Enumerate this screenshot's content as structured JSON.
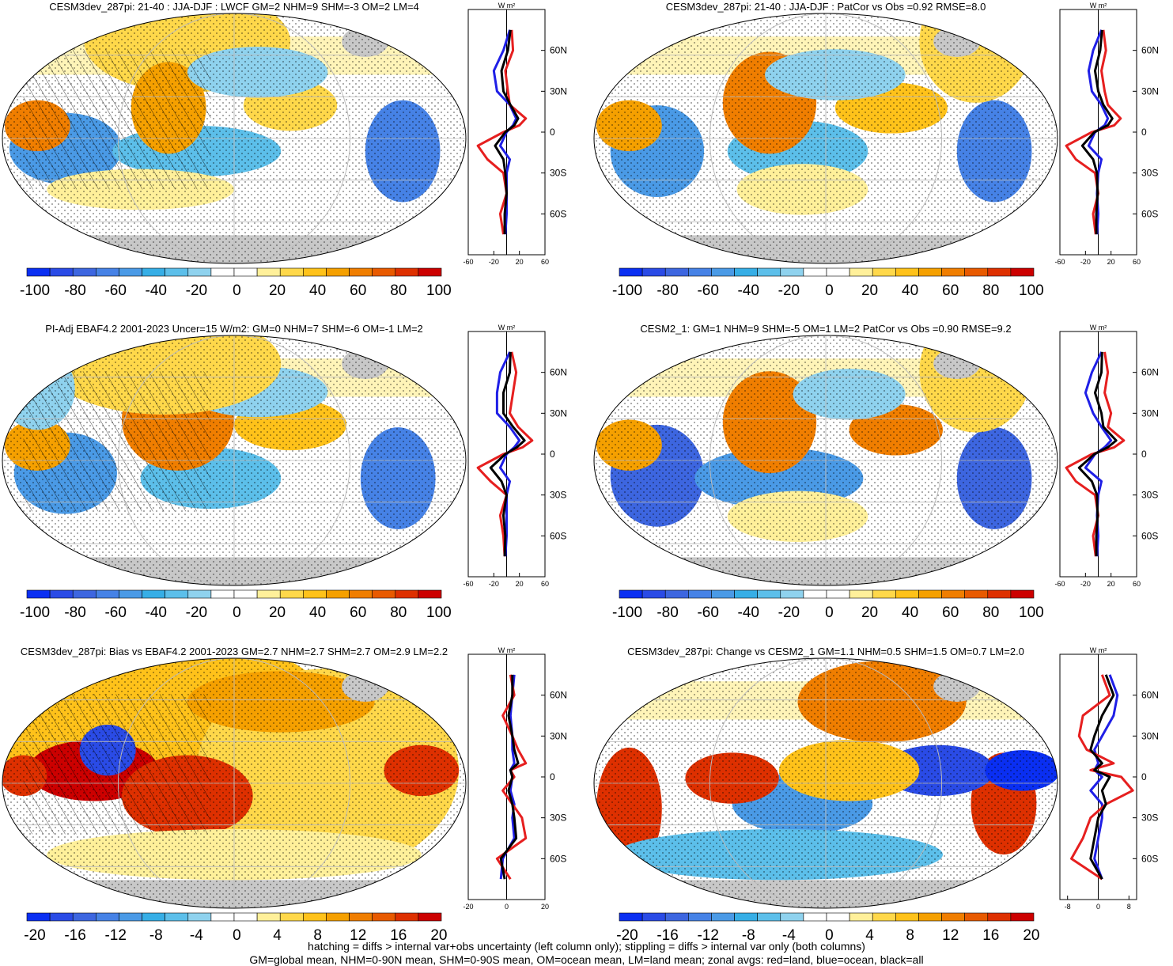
{
  "colormap": {
    "main": [
      "#0a2ff2",
      "#2a4be6",
      "#3d66e0",
      "#4682e6",
      "#4a9ae6",
      "#36aee6",
      "#5cbfea",
      "#8fd2ee",
      "#ffffff",
      "#ffffff",
      "#fff09a",
      "#ffd84a",
      "#ffc21a",
      "#f5a000",
      "#f07e00",
      "#e85a00",
      "#de3000",
      "#cc0000"
    ],
    "bias": [
      "#0a2ff2",
      "#2a4be6",
      "#3d66e0",
      "#4682e6",
      "#4a9ae6",
      "#36aee6",
      "#5cbfea",
      "#8fd2ee",
      "#ffffff",
      "#ffffff",
      "#fff09a",
      "#ffd84a",
      "#ffc21a",
      "#f5a000",
      "#f07e00",
      "#e85a00",
      "#de3000",
      "#cc0000"
    ]
  },
  "chart_data": [
    {
      "type": "heatmap",
      "title": "CESM3dev_287pi: 21-40 : JJA-DJF : LWCF GM=2 NHM=9 SHM=-3 OM=2 LM=4",
      "colorbar_ticks": [
        "-100",
        "-80",
        "-60",
        "-40",
        "-20",
        "0",
        "20",
        "40",
        "60",
        "80",
        "100"
      ],
      "zonal": {
        "unit": "W m²",
        "xlim": [
          -60,
          60
        ],
        "x_ticks": [
          "-60",
          "-20",
          "20",
          "60"
        ],
        "lat_labels": [
          "60N",
          "30N",
          "0",
          "30S",
          "60S"
        ],
        "lat": [
          75,
          60,
          45,
          30,
          20,
          10,
          5,
          0,
          -10,
          -20,
          -30,
          -45,
          -60,
          -75
        ],
        "land": [
          8,
          10,
          -2,
          2,
          5,
          30,
          20,
          -5,
          -45,
          -30,
          -5,
          0,
          -10,
          -5
        ],
        "ocean": [
          5,
          -5,
          -20,
          -15,
          5,
          15,
          10,
          0,
          -10,
          5,
          0,
          0,
          0,
          -2
        ],
        "all": [
          6,
          2,
          -8,
          -5,
          6,
          18,
          12,
          -2,
          -18,
          -5,
          -2,
          0,
          -3,
          -3
        ]
      }
    },
    {
      "type": "heatmap",
      "title": "CESM3dev_287pi: 21-40 : JJA-DJF : PatCor vs Obs =0.92 RMSE=8.0",
      "colorbar_ticks": [
        "-100",
        "-80",
        "-60",
        "-40",
        "-20",
        "0",
        "20",
        "40",
        "60",
        "80",
        "100"
      ],
      "zonal": {
        "unit": "W m²",
        "xlim": [
          -60,
          60
        ],
        "x_ticks": [
          "-60",
          "-20",
          "20",
          "60"
        ],
        "lat_labels": [
          "60N",
          "30N",
          "0",
          "30S",
          "60S"
        ],
        "lat": [
          75,
          60,
          45,
          30,
          20,
          10,
          5,
          0,
          -10,
          -20,
          -30,
          -45,
          -60,
          -75
        ],
        "land": [
          8,
          12,
          5,
          10,
          15,
          35,
          25,
          -10,
          -50,
          -35,
          -5,
          0,
          -8,
          -4
        ],
        "ocean": [
          5,
          -8,
          -15,
          -10,
          5,
          15,
          10,
          -5,
          -15,
          5,
          0,
          -2,
          0,
          -2
        ],
        "all": [
          6,
          3,
          -5,
          0,
          8,
          22,
          15,
          -6,
          -25,
          -8,
          -2,
          -1,
          -3,
          -3
        ]
      }
    },
    {
      "type": "heatmap",
      "title": "PI-Adj EBAF4.2 2001-2023 Uncer=15 W/m2: GM=0 NHM=7 SHM=-6 OM=-1 LM=2",
      "colorbar_ticks": [
        "-100",
        "-80",
        "-60",
        "-40",
        "-20",
        "0",
        "20",
        "40",
        "60",
        "80",
        "100"
      ],
      "zonal": {
        "unit": "W m²",
        "xlim": [
          -60,
          60
        ],
        "x_ticks": [
          "-60",
          "-20",
          "20",
          "60"
        ],
        "lat_labels": [
          "60N",
          "30N",
          "0",
          "30S",
          "60S"
        ],
        "lat": [
          75,
          60,
          45,
          30,
          20,
          10,
          5,
          0,
          -10,
          -20,
          -30,
          -45,
          -60,
          -75
        ],
        "land": [
          8,
          15,
          10,
          5,
          18,
          40,
          25,
          -5,
          -45,
          -25,
          0,
          -10,
          -5,
          -3
        ],
        "ocean": [
          5,
          -10,
          -15,
          -15,
          5,
          20,
          12,
          0,
          -10,
          5,
          0,
          0,
          0,
          -2
        ],
        "all": [
          6,
          5,
          -5,
          -5,
          10,
          28,
          16,
          -2,
          -25,
          -8,
          0,
          -5,
          -2,
          -3
        ]
      }
    },
    {
      "type": "heatmap",
      "title": "CESM2_1: GM=1 NHM=9 SHM=-5 OM=1 LM=2 PatCor vs Obs =0.90 RMSE=9.2",
      "colorbar_ticks": [
        "-100",
        "-80",
        "-60",
        "-40",
        "-20",
        "0",
        "20",
        "40",
        "60",
        "80",
        "100"
      ],
      "zonal": {
        "unit": "W m²",
        "xlim": [
          -60,
          60
        ],
        "x_ticks": [
          "-60",
          "-20",
          "20",
          "60"
        ],
        "lat_labels": [
          "60N",
          "30N",
          "0",
          "30S",
          "60S"
        ],
        "lat": [
          75,
          60,
          45,
          30,
          20,
          10,
          5,
          0,
          -10,
          -20,
          -30,
          -45,
          -60,
          -75
        ],
        "land": [
          10,
          15,
          10,
          20,
          15,
          40,
          25,
          -10,
          -50,
          -35,
          -5,
          0,
          -8,
          -4
        ],
        "ocean": [
          5,
          -10,
          -20,
          -8,
          5,
          20,
          10,
          -5,
          -20,
          5,
          0,
          -2,
          0,
          -2
        ],
        "all": [
          6,
          5,
          -5,
          5,
          8,
          28,
          15,
          -6,
          -30,
          -10,
          -2,
          -1,
          -3,
          -3
        ]
      }
    },
    {
      "type": "heatmap",
      "title": "CESM3dev_287pi: Bias vs EBAF4.2 2001-2023 GM=2.7 NHM=2.7 SHM=2.7 OM=2.9 LM=2.2",
      "colorbar_ticks": [
        "-20",
        "-16",
        "-12",
        "-8",
        "-4",
        "0",
        "4",
        "8",
        "12",
        "16",
        "20"
      ],
      "zonal": {
        "unit": "W m²",
        "xlim": [
          -20,
          20
        ],
        "x_ticks": [
          "-20",
          "0",
          "20"
        ],
        "lat_labels": [
          "60N",
          "30N",
          "0",
          "30S",
          "60S"
        ],
        "lat": [
          75,
          60,
          45,
          30,
          20,
          10,
          5,
          0,
          -10,
          -20,
          -30,
          -45,
          -60,
          -75
        ],
        "land": [
          2,
          4,
          -2,
          3,
          6,
          10,
          2,
          4,
          -2,
          3,
          8,
          10,
          -5,
          2
        ],
        "ocean": [
          4,
          3,
          2,
          3,
          3,
          4,
          2,
          3,
          2,
          4,
          3,
          4,
          -2,
          -3
        ],
        "all": [
          3,
          3,
          1,
          3,
          4,
          6,
          2,
          3,
          1,
          3,
          4,
          5,
          -3,
          -1
        ]
      }
    },
    {
      "type": "heatmap",
      "title": "CESM3dev_287pi: Change vs CESM2_1 GM=1.1 NHM=0.5 SHM=1.5 OM=0.7 LM=2.0",
      "colorbar_ticks": [
        "-20",
        "-16",
        "-12",
        "-8",
        "-4",
        "0",
        "4",
        "8",
        "12",
        "16",
        "20"
      ],
      "zonal": {
        "unit": "W m²",
        "xlim": [
          -10,
          10
        ],
        "x_ticks": [
          "-8",
          "0",
          "8"
        ],
        "lat_labels": [
          "60N",
          "30N",
          "0",
          "30S",
          "60S"
        ],
        "lat": [
          75,
          60,
          45,
          30,
          20,
          10,
          5,
          0,
          -10,
          -20,
          -30,
          -45,
          -60,
          -75
        ],
        "land": [
          1,
          3,
          -4,
          -5,
          -3,
          4,
          -2,
          6,
          9,
          2,
          -2,
          -4,
          -7,
          1
        ],
        "ocean": [
          3,
          5,
          4,
          1,
          -1,
          0,
          -1,
          1,
          -2,
          1,
          1,
          0,
          -1,
          1
        ],
        "all": [
          2,
          4,
          1,
          -1,
          -2,
          1,
          -1,
          3,
          1,
          2,
          0,
          -1,
          -2,
          1
        ]
      }
    }
  ],
  "footer": {
    "line1": "hatching = diffs > internal var+obs uncertainty (left column only); stippling = diffs > internal var only (both columns)",
    "line2": "GM=global mean, NHM=0-90N mean, SHM=0-90S mean, OM=ocean mean, LM=land mean; zonal avgs: red=land, blue=ocean, black=all"
  }
}
